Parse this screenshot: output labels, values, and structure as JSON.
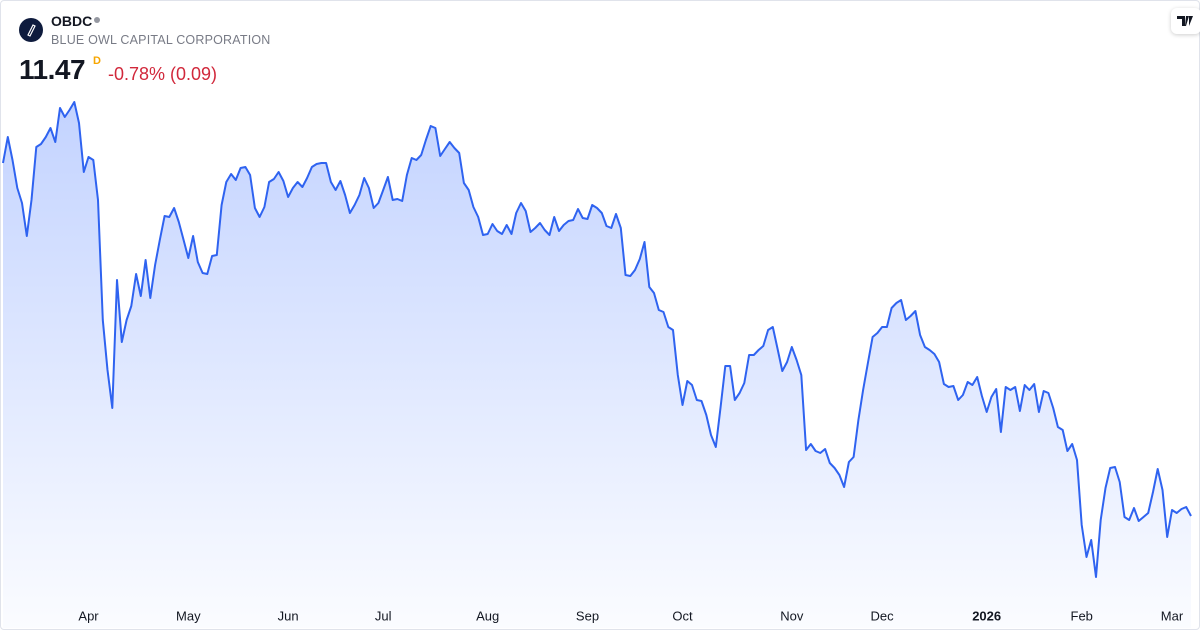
{
  "header": {
    "symbol": "OBDC",
    "company": "BLUE OWL CAPITAL CORPORATION",
    "price": 11.47,
    "price_flag": "D",
    "change": "-0.78% (0.09)"
  },
  "chart_data": {
    "type": "line",
    "color": "#2f63f0",
    "xlim": [
      0,
      250
    ],
    "ylim": [
      10.63,
      16.63
    ],
    "xticks": [
      {
        "value": 18,
        "label": "Apr"
      },
      {
        "value": 39,
        "label": "May"
      },
      {
        "value": 60,
        "label": "Jun"
      },
      {
        "value": 80,
        "label": "Jul"
      },
      {
        "value": 102,
        "label": "Aug"
      },
      {
        "value": 123,
        "label": "Sep"
      },
      {
        "value": 143,
        "label": "Oct"
      },
      {
        "value": 166,
        "label": "Nov"
      },
      {
        "value": 185,
        "label": "Dec"
      },
      {
        "value": 207,
        "label": "2026"
      },
      {
        "value": 227,
        "label": "Feb"
      },
      {
        "value": 246,
        "label": "Mar"
      }
    ],
    "values": [
      15.0,
      15.26,
      15.03,
      14.75,
      14.6,
      14.27,
      14.63,
      15.16,
      15.19,
      15.26,
      15.35,
      15.21,
      15.55,
      15.46,
      15.53,
      15.61,
      15.4,
      14.91,
      15.06,
      15.03,
      14.63,
      13.43,
      12.93,
      12.55,
      13.83,
      13.21,
      13.43,
      13.57,
      13.89,
      13.67,
      14.03,
      13.65,
      13.98,
      14.23,
      14.47,
      14.46,
      14.55,
      14.41,
      14.23,
      14.05,
      14.27,
      14.01,
      13.9,
      13.89,
      14.07,
      14.08,
      14.58,
      14.81,
      14.89,
      14.83,
      14.95,
      14.96,
      14.88,
      14.55,
      14.46,
      14.56,
      14.81,
      14.84,
      14.91,
      14.82,
      14.66,
      14.75,
      14.81,
      14.76,
      14.85,
      14.96,
      14.99,
      15.0,
      15.0,
      14.81,
      14.73,
      14.82,
      14.68,
      14.5,
      14.58,
      14.68,
      14.85,
      14.75,
      14.55,
      14.6,
      14.73,
      14.86,
      14.63,
      14.64,
      14.62,
      14.88,
      15.05,
      15.03,
      15.08,
      15.23,
      15.37,
      15.35,
      15.07,
      15.14,
      15.21,
      15.15,
      15.1,
      14.8,
      14.73,
      14.56,
      14.46,
      14.28,
      14.29,
      14.39,
      14.32,
      14.29,
      14.38,
      14.29,
      14.5,
      14.6,
      14.52,
      14.31,
      14.35,
      14.4,
      14.33,
      14.28,
      14.46,
      14.32,
      14.38,
      14.42,
      14.43,
      14.54,
      14.45,
      14.44,
      14.58,
      14.55,
      14.5,
      14.37,
      14.35,
      14.49,
      14.35,
      13.88,
      13.87,
      13.93,
      14.04,
      14.21,
      13.76,
      13.7,
      13.53,
      13.51,
      13.36,
      13.33,
      12.88,
      12.58,
      12.82,
      12.78,
      12.63,
      12.62,
      12.48,
      12.28,
      12.16,
      12.56,
      12.97,
      12.97,
      12.63,
      12.7,
      12.8,
      13.08,
      13.08,
      13.13,
      13.17,
      13.33,
      13.36,
      13.14,
      12.92,
      13.01,
      13.16,
      13.03,
      12.88,
      12.13,
      12.19,
      12.12,
      12.1,
      12.14,
      12.0,
      11.95,
      11.88,
      11.76,
      12.01,
      12.06,
      12.43,
      12.73,
      13.0,
      13.26,
      13.3,
      13.36,
      13.36,
      13.55,
      13.6,
      13.63,
      13.43,
      13.47,
      13.52,
      13.28,
      13.16,
      13.13,
      13.09,
      13.01,
      12.79,
      12.76,
      12.77,
      12.63,
      12.68,
      12.81,
      12.78,
      12.86,
      12.67,
      12.51,
      12.66,
      12.74,
      12.31,
      12.76,
      12.73,
      12.76,
      12.52,
      12.78,
      12.73,
      12.79,
      12.51,
      12.72,
      12.7,
      12.55,
      12.36,
      12.33,
      12.12,
      12.19,
      12.03,
      11.38,
      11.06,
      11.23,
      10.86,
      11.43,
      11.75,
      11.95,
      11.96,
      11.81,
      11.46,
      11.43,
      11.55,
      11.42,
      11.46,
      11.5,
      11.71,
      11.94,
      11.73,
      11.26,
      11.53,
      11.5,
      11.54,
      11.56,
      11.47
    ]
  }
}
